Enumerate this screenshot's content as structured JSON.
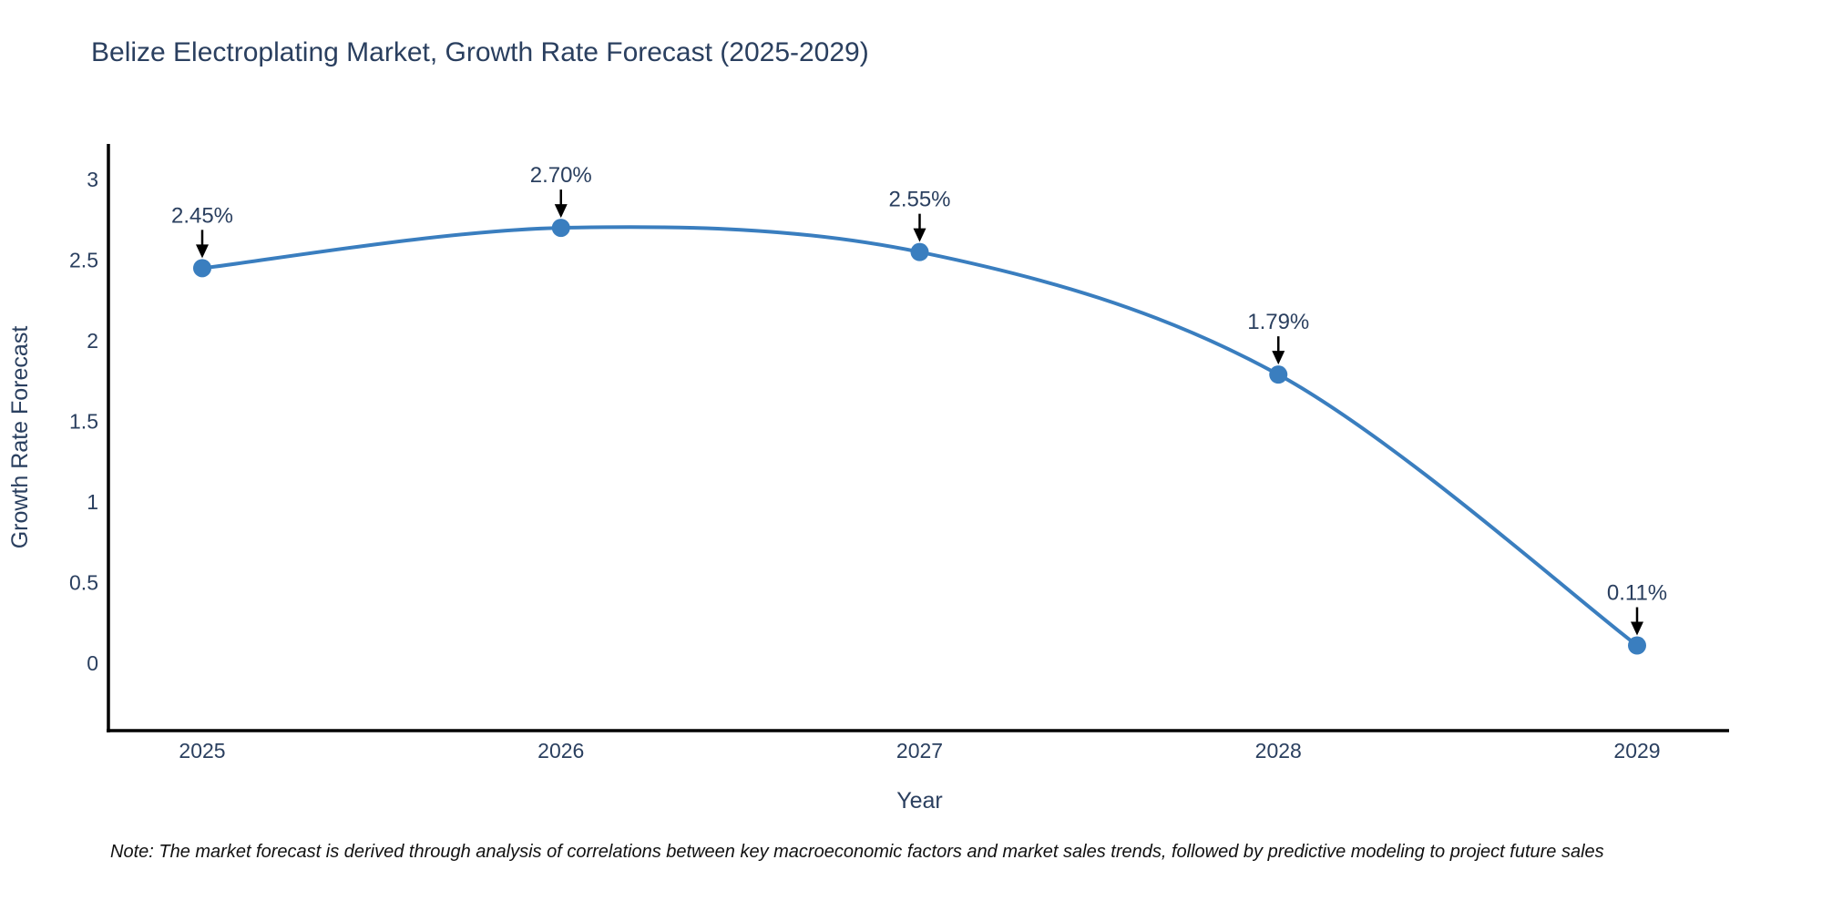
{
  "page": {
    "title": "Belize Electroplating Market, Growth Rate Forecast (2025-2029)",
    "note": "Note: The market forecast is derived through analysis of correlations between key macroeconomic factors and market sales trends, followed by predictive modeling to project future sales"
  },
  "colors": {
    "line": "#3a7ebf",
    "marker": "#3a7ebf",
    "axis_line": "#000000",
    "text": "#2a3f5f",
    "arrow": "#000000",
    "note_text": "#111111",
    "background": "#ffffff"
  },
  "chart_data": {
    "type": "line",
    "line_shape": "spline",
    "markers": true,
    "title": "Belize Electroplating Market, Growth Rate Forecast (2025-2029)",
    "xlabel": "Year",
    "ylabel": "Growth Rate Forecast",
    "x": [
      2025,
      2026,
      2027,
      2028,
      2029
    ],
    "x_tick_labels": [
      "2025",
      "2026",
      "2027",
      "2028",
      "2029"
    ],
    "series": [
      {
        "name": "Growth Rate Forecast",
        "values": [
          2.45,
          2.7,
          2.55,
          1.79,
          0.11
        ]
      }
    ],
    "point_labels": [
      "2.45%",
      "2.70%",
      "2.55%",
      "1.79%",
      "0.11%"
    ],
    "y_tick_labels": [
      "0",
      "0.5",
      "1",
      "1.5",
      "2",
      "2.5",
      "3"
    ],
    "ylim": [
      -0.42,
      3.22
    ],
    "grid": false,
    "legend": false
  }
}
